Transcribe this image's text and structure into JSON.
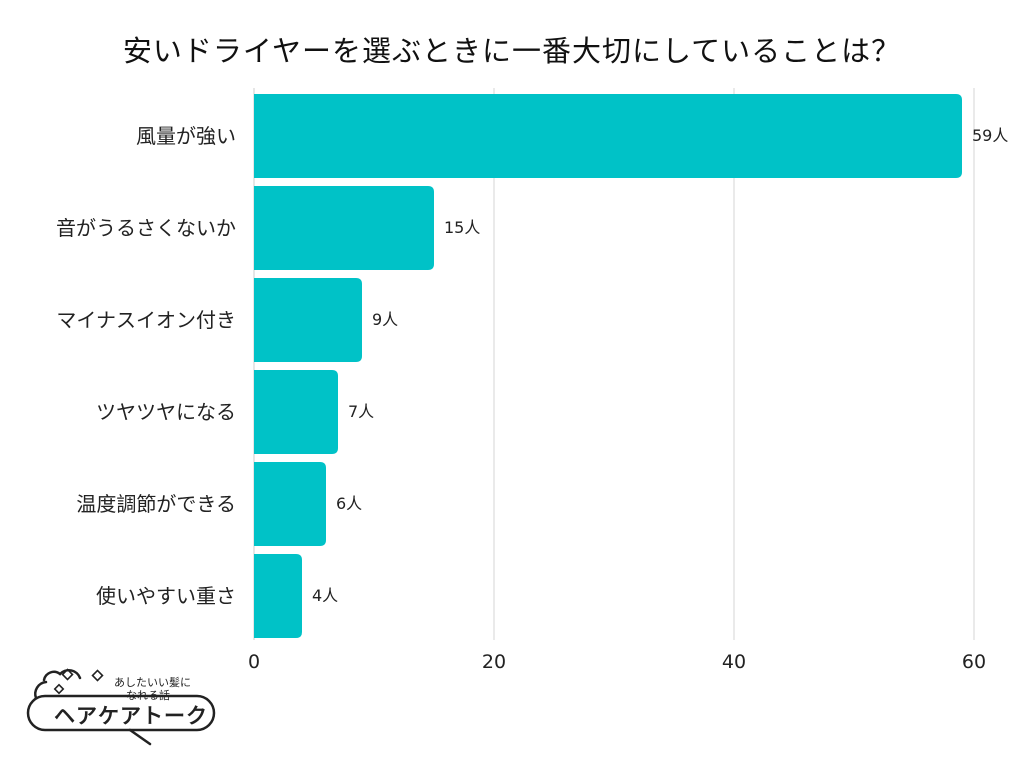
{
  "chart_data": {
    "type": "bar",
    "orientation": "horizontal",
    "title": "安いドライヤーを選ぶときに一番大切にしていることは？",
    "categories": [
      "風量が強い",
      "音がうるさくないか",
      "マイナスイオン付き",
      "ツヤツヤになる",
      "温度調節ができる",
      "使いやすい重さ"
    ],
    "values": [
      59,
      15,
      9,
      7,
      6,
      4
    ],
    "value_labels": [
      "59人",
      "15人",
      "9人",
      "7人",
      "6人",
      "4人"
    ],
    "unit": "人",
    "xlim": [
      0,
      60
    ],
    "xticks": [
      0,
      20,
      40,
      60
    ],
    "grid": true,
    "bar_color": "#00C2C7"
  },
  "logo": {
    "subtitle_line1": "あしたいい髪に",
    "subtitle_line2": "なれる話",
    "name": "ヘアケアトーク"
  }
}
